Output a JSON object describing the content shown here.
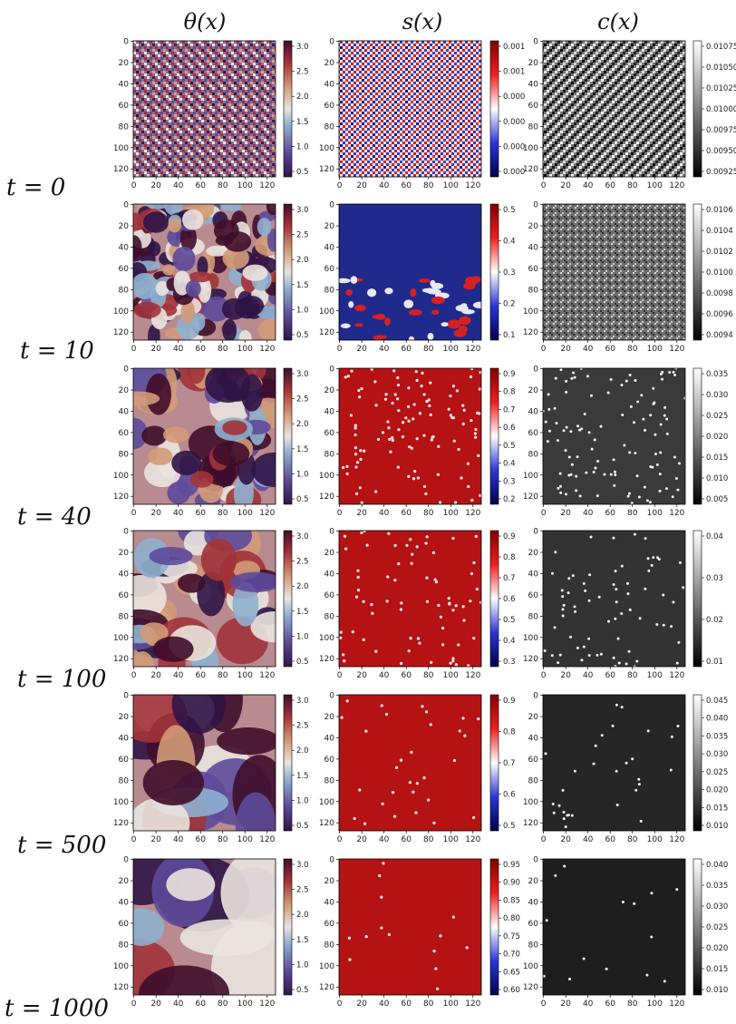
{
  "figure": {
    "column_headers": [
      "θ(x)",
      "s(x)",
      "c(x)"
    ],
    "row_labels": [
      "t = 0",
      "t = 10",
      "t = 40",
      "t = 100",
      "t = 500",
      "t = 1000"
    ],
    "axis_ticks": [
      "0",
      "20",
      "40",
      "60",
      "80",
      "100",
      "120"
    ],
    "field_colormaps": {
      "theta": "twilight_shifted",
      "s": "seismic",
      "c": "gray"
    }
  },
  "chart_data": {
    "type": "heatmap",
    "description_grid": "6 time rows x 3 fields, each a 128x128 lattice (axes 0–127)",
    "x": {
      "range": [
        0,
        127
      ],
      "ticks": [
        0,
        20,
        40,
        60,
        80,
        100,
        120
      ]
    },
    "y": {
      "range": [
        0,
        127
      ],
      "ticks": [
        0,
        20,
        40,
        60,
        80,
        100,
        120
      ],
      "inverted": true
    },
    "panels": [
      {
        "t": 0,
        "theta_cbar": [
          "3.0",
          "2.5",
          "2.0",
          "1.5",
          "1.0",
          "0.5"
        ],
        "s_cbar": [
          "0.001",
          "0.001",
          "0.000",
          "0.000",
          "0.000",
          "0.000"
        ],
        "c_cbar": [
          "0.01075",
          "0.01050",
          "0.01025",
          "0.01000",
          "0.00975",
          "0.00950",
          "0.00925"
        ]
      },
      {
        "t": 10,
        "theta_cbar": [
          "3.0",
          "2.5",
          "2.0",
          "1.5",
          "1.0",
          "0.5"
        ],
        "s_cbar": [
          "0.5",
          "0.4",
          "0.3",
          "0.2",
          "0.1"
        ],
        "c_cbar": [
          "0.0106",
          "0.0104",
          "0.0102",
          "0.0100",
          "0.0098",
          "0.0096",
          "0.0094"
        ]
      },
      {
        "t": 40,
        "theta_cbar": [
          "3.0",
          "2.5",
          "2.0",
          "1.5",
          "1.0",
          "0.5"
        ],
        "s_cbar": [
          "0.9",
          "0.8",
          "0.7",
          "0.6",
          "0.5",
          "0.4",
          "0.3",
          "0.2"
        ],
        "c_cbar": [
          "0.035",
          "0.030",
          "0.025",
          "0.020",
          "0.015",
          "0.010",
          "0.005"
        ]
      },
      {
        "t": 100,
        "theta_cbar": [
          "3.0",
          "2.5",
          "2.0",
          "1.5",
          "1.0",
          "0.5"
        ],
        "s_cbar": [
          "0.9",
          "0.8",
          "0.7",
          "0.6",
          "0.5",
          "0.4",
          "0.3"
        ],
        "c_cbar": [
          "0.04",
          "0.03",
          "0.02",
          "0.01"
        ]
      },
      {
        "t": 500,
        "theta_cbar": [
          "3.0",
          "2.5",
          "2.0",
          "1.5",
          "1.0",
          "0.5"
        ],
        "s_cbar": [
          "0.9",
          "0.8",
          "0.7",
          "0.6",
          "0.5"
        ],
        "c_cbar": [
          "0.045",
          "0.040",
          "0.035",
          "0.030",
          "0.025",
          "0.020",
          "0.015",
          "0.010"
        ]
      },
      {
        "t": 1000,
        "theta_cbar": [
          "3.0",
          "2.5",
          "2.0",
          "1.5",
          "1.0",
          "0.5"
        ],
        "s_cbar": [
          "0.95",
          "0.90",
          "0.85",
          "0.80",
          "0.75",
          "0.70",
          "0.65",
          "0.60"
        ],
        "c_cbar": [
          "0.040",
          "0.035",
          "0.030",
          "0.025",
          "0.020",
          "0.015",
          "0.010"
        ]
      }
    ]
  }
}
